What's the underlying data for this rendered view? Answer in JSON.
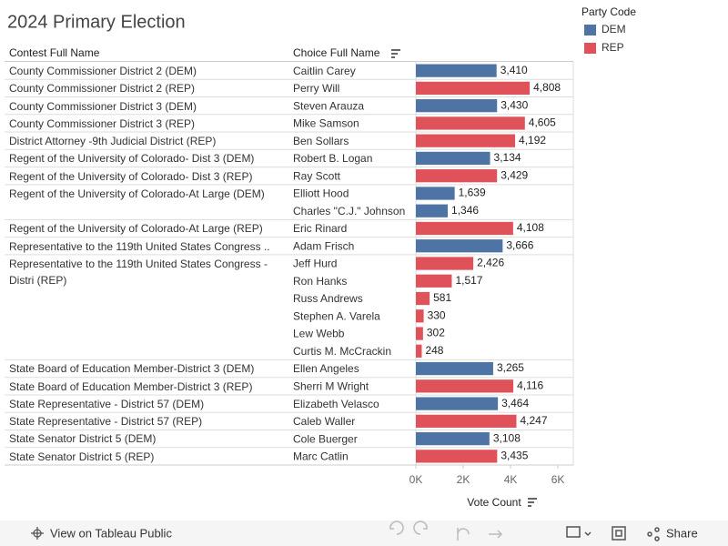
{
  "chart_data": {
    "type": "bar",
    "title": "2024 Primary Election",
    "headers": [
      "Contest Full Name",
      "Choice Full Name"
    ],
    "contests": [
      "County Commissioner District 2 (DEM)",
      "County Commissioner District 2 (REP)",
      "County Commissioner District 3 (DEM)",
      "County Commissioner District 3 (REP)",
      "District Attorney -9th Judicial District (REP)",
      "Regent of the University of Colorado- Dist 3 (DEM)",
      "Regent of the University of Colorado- Dist 3 (REP)",
      "Regent of the University of Colorado-At Large (DEM)",
      null,
      "Regent of the University of Colorado-At Large  (REP)",
      "Representative to the 119th United States Congress ..",
      "Representative to the 119th United States Congress - Distri (REP)",
      null,
      null,
      null,
      null,
      null,
      "State Board of Education Member-District 3 (DEM)",
      "State Board of Education Member-District 3 (REP)",
      "State Representative - District 57 (DEM)",
      "State Representative - District 57 (REP)",
      "State Senator District 5 (DEM)",
      "State Senator District 5 (REP)"
    ],
    "categories": [
      "Caitlin Carey",
      "Perry Will",
      "Steven Arauza",
      "Mike Samson",
      "Ben Sollars",
      "Robert B. Logan",
      "Ray Scott",
      "Elliott Hood",
      "Charles \"C.J.\" Johnson",
      "Eric Rinard",
      "Adam Frisch",
      "Jeff Hurd",
      "Ron Hanks",
      "Russ Andrews",
      "Stephen A. Varela",
      "Lew Webb",
      "Curtis M. McCrackin",
      "Ellen Angeles",
      "Sherri M Wright",
      "Elizabeth Velasco",
      "Caleb Waller",
      "Cole Buerger",
      "Marc Catlin"
    ],
    "legend_title": "Party Code",
    "series": [
      {
        "name": "DEM",
        "color": "#4e74a6",
        "values": [
          3410,
          null,
          3430,
          null,
          null,
          3134,
          null,
          1639,
          1346,
          null,
          3666,
          null,
          null,
          null,
          null,
          null,
          null,
          3265,
          null,
          3464,
          null,
          3108,
          null
        ],
        "value_labels": [
          "3,410",
          null,
          "3,430",
          null,
          null,
          "3,134",
          null,
          "1,639",
          "1,346",
          null,
          "3,666",
          null,
          null,
          null,
          null,
          null,
          null,
          "3,265",
          null,
          "3,464",
          null,
          "3,108",
          null
        ]
      },
      {
        "name": "REP",
        "color": "#e0525a",
        "values": [
          null,
          4808,
          null,
          4605,
          4192,
          null,
          3429,
          null,
          null,
          4108,
          null,
          2426,
          1517,
          581,
          330,
          302,
          248,
          null,
          4116,
          null,
          4247,
          null,
          3435
        ],
        "value_labels": [
          null,
          "4,808",
          null,
          "4,605",
          "4,192",
          null,
          "3,429",
          null,
          null,
          "4,108",
          null,
          "2,426",
          "1,517",
          null,
          null,
          null,
          null,
          null,
          "4,116",
          null,
          "4,247",
          null,
          "3,435"
        ]
      }
    ],
    "xlabel": "Vote Count",
    "xlim": [
      0,
      6650
    ],
    "xticks": [
      {
        "value": 0,
        "label": "0K"
      },
      {
        "value": 2000,
        "label": "2K"
      },
      {
        "value": 4000,
        "label": "4K"
      },
      {
        "value": 6000,
        "label": "6K"
      }
    ]
  },
  "toolbar": {
    "view": "View on Tableau Public",
    "share": "Share"
  }
}
